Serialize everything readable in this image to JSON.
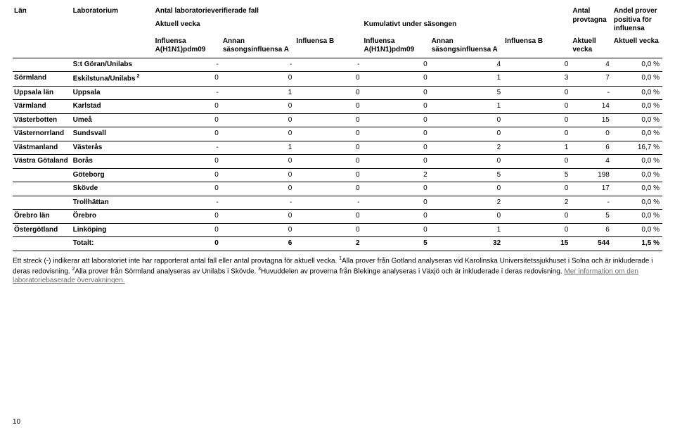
{
  "headers": {
    "lan": "Län",
    "lab": "Laboratorium",
    "verified_group": "Antal laboratorieverifierade fall",
    "aktuell_vecka": "Aktuell vecka",
    "kumulativ": "Kumulativt under säsongen",
    "provtagna_group": "Antal provtagna",
    "andel_group": "Andel prover positiva för influensa",
    "col_h1n1": "Influensa A(H1N1)pdm09",
    "col_annanA": "Annan säsongsinfluensa A",
    "col_B": "Influensa B",
    "col_aktuell_vecka_small": "Aktuell vecka"
  },
  "rows": [
    {
      "lan": "",
      "lab": "S:t Göran/Unilabs",
      "sup": "",
      "a1": "-",
      "a2": "-",
      "a3": "-",
      "k1": "0",
      "k2": "4",
      "k3": "0",
      "pv": "4",
      "ap": "0,0 %"
    },
    {
      "lan": "Sörmland",
      "lab": "Eskilstuna/Unilabs",
      "sup": "2",
      "a1": "0",
      "a2": "0",
      "a3": "0",
      "k1": "0",
      "k2": "1",
      "k3": "3",
      "pv": "7",
      "ap": "0,0 %"
    },
    {
      "lan": "Uppsala län",
      "lab": "Uppsala",
      "sup": "",
      "a1": "-",
      "a2": "1",
      "a3": "0",
      "k1": "0",
      "k2": "5",
      "k3": "0",
      "pv": "-",
      "ap": "0,0 %"
    },
    {
      "lan": "Värmland",
      "lab": "Karlstad",
      "sup": "",
      "a1": "0",
      "a2": "0",
      "a3": "0",
      "k1": "0",
      "k2": "1",
      "k3": "0",
      "pv": "14",
      "ap": "0,0 %"
    },
    {
      "lan": "Västerbotten",
      "lab": "Umeå",
      "sup": "",
      "a1": "0",
      "a2": "0",
      "a3": "0",
      "k1": "0",
      "k2": "0",
      "k3": "0",
      "pv": "15",
      "ap": "0,0 %"
    },
    {
      "lan": "Västernorrland",
      "lab": "Sundsvall",
      "sup": "",
      "a1": "0",
      "a2": "0",
      "a3": "0",
      "k1": "0",
      "k2": "0",
      "k3": "0",
      "pv": "0",
      "ap": "0,0 %"
    },
    {
      "lan": "Västmanland",
      "lab": "Västerås",
      "sup": "",
      "a1": "-",
      "a2": "1",
      "a3": "0",
      "k1": "0",
      "k2": "2",
      "k3": "1",
      "pv": "6",
      "ap": "16,7 %"
    },
    {
      "lan": "Västra Götaland",
      "lab": "Borås",
      "sup": "",
      "a1": "0",
      "a2": "0",
      "a3": "0",
      "k1": "0",
      "k2": "0",
      "k3": "0",
      "pv": "4",
      "ap": "0,0 %"
    },
    {
      "lan": "",
      "lab": "Göteborg",
      "sup": "",
      "a1": "0",
      "a2": "0",
      "a3": "0",
      "k1": "2",
      "k2": "5",
      "k3": "5",
      "pv": "198",
      "ap": "0,0 %"
    },
    {
      "lan": "",
      "lab": "Skövde",
      "sup": "",
      "a1": "0",
      "a2": "0",
      "a3": "0",
      "k1": "0",
      "k2": "0",
      "k3": "0",
      "pv": "17",
      "ap": "0,0 %"
    },
    {
      "lan": "",
      "lab": "Trollhättan",
      "sup": "",
      "a1": "-",
      "a2": "-",
      "a3": "-",
      "k1": "0",
      "k2": "2",
      "k3": "2",
      "pv": "-",
      "ap": "0,0 %"
    },
    {
      "lan": "Örebro län",
      "lab": "Örebro",
      "sup": "",
      "a1": "0",
      "a2": "0",
      "a3": "0",
      "k1": "0",
      "k2": "0",
      "k3": "0",
      "pv": "5",
      "ap": "0,0 %"
    },
    {
      "lan": "Östergötland",
      "lab": "Linköping",
      "sup": "",
      "a1": "0",
      "a2": "0",
      "a3": "0",
      "k1": "0",
      "k2": "1",
      "k3": "0",
      "pv": "6",
      "ap": "0,0 %"
    }
  ],
  "total": {
    "label": "Totalt:",
    "a1": "0",
    "a2": "6",
    "a3": "2",
    "k1": "5",
    "k2": "32",
    "k3": "15",
    "pv": "544",
    "ap": "1,5 %"
  },
  "footnote": {
    "t1": "Ett streck (-) indikerar att laboratoriet inte har rapporterat antal fall eller antal provtagna för aktuell vecka. ",
    "s1": "1",
    "t2": "Alla prover från Gotland analyseras vid Karolinska Universitetssjukhuset i Solna och är inkluderade i deras redovisning. ",
    "s2": "2",
    "t3": "Alla prover från Sörmland analyseras av Unilabs i Skövde. ",
    "s3": "3",
    "t4": "Huvuddelen av proverna från Blekinge analyseras i Växjö och är inkluderade i deras redovisning. ",
    "link": "Mer information om den laboratoriebaserade övervakningen."
  },
  "page_number": "10"
}
